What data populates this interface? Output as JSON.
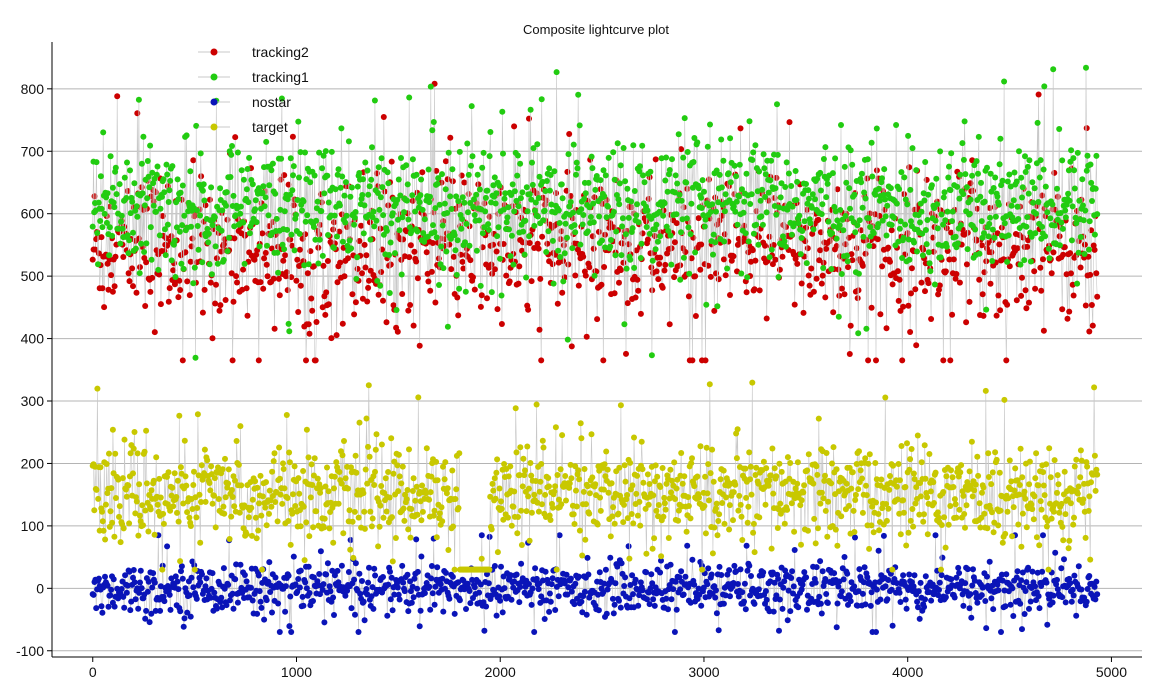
{
  "chart_data": {
    "type": "scatter",
    "title": "Composite lightcurve plot",
    "xlabel": "",
    "ylabel": "",
    "xlim": [
      -200,
      5150
    ],
    "ylim": [
      -110,
      875
    ],
    "x_ticks": [
      0,
      1000,
      2000,
      3000,
      4000,
      5000
    ],
    "y_ticks": [
      -100,
      0,
      100,
      200,
      300,
      400,
      500,
      600,
      700,
      800
    ],
    "grid": "horizontal",
    "legend_position": "top-left",
    "connector_color": "#c8c8c8",
    "series": [
      {
        "name": "tracking2",
        "color": "#cc0000",
        "x_range": [
          0,
          4930
        ],
        "count": 1150,
        "mean": 545,
        "spread": 70,
        "min": 365,
        "max": 808
      },
      {
        "name": "tracking1",
        "color": "#22cc11",
        "x_range": [
          0,
          4930
        ],
        "count": 1350,
        "mean": 610,
        "spread": 62,
        "min": 355,
        "max": 858
      },
      {
        "name": "nostar",
        "color": "#0a14b8",
        "x_range": [
          0,
          4930
        ],
        "count": 1150,
        "mean": 0,
        "spread": 24,
        "min": -70,
        "max": 85
      },
      {
        "name": "target",
        "color": "#c8c800",
        "x_range": [
          0,
          4930
        ],
        "gap": [
          1800,
          1950
        ],
        "gap_mean": 0,
        "gap_spread": 20,
        "count": 1300,
        "mean": 150,
        "spread": 45,
        "min": 30,
        "max": 365
      }
    ]
  }
}
